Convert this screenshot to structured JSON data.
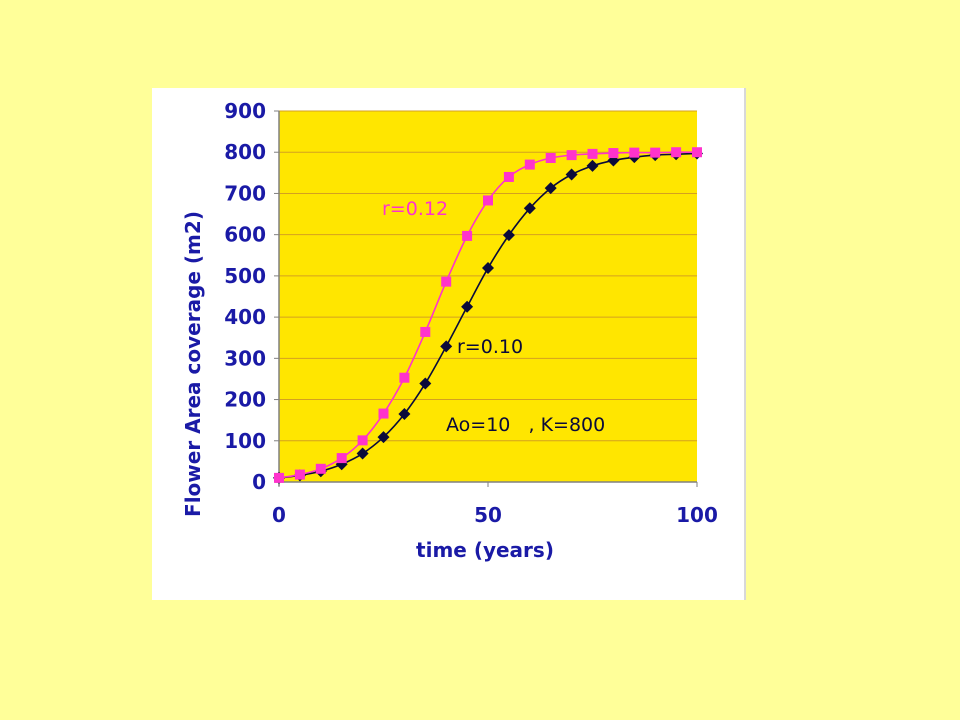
{
  "colors": {
    "slide_background": "#ffff99",
    "plot_background": "#ffe600",
    "gridline": "#d4a020",
    "axis_text": "#1a1aa6",
    "series_r012": "#ff33cc",
    "series_r010": "#0a0a3a"
  },
  "chart_data": {
    "type": "line",
    "xlabel": "time (years)",
    "ylabel": "Flower Area coverage (m2)",
    "xlim": [
      0,
      100
    ],
    "ylim": [
      0,
      900
    ],
    "x_ticks": [
      0,
      50,
      100
    ],
    "y_ticks": [
      0,
      100,
      200,
      300,
      400,
      500,
      600,
      700,
      800,
      900
    ],
    "grid": "horizontal",
    "series": [
      {
        "name": "r=0.12",
        "marker": "square",
        "color": "#ff33cc",
        "x": [
          0,
          5,
          10,
          15,
          20,
          25,
          30,
          35,
          40,
          45,
          50,
          55,
          60,
          65,
          70,
          75,
          80,
          85,
          90,
          95,
          100
        ],
        "y": [
          10,
          18,
          32,
          58,
          101,
          166,
          253,
          364,
          486,
          597,
          683,
          740,
          770,
          786,
          793,
          796,
          798,
          799,
          799,
          800,
          800
        ]
      },
      {
        "name": "r=0.10",
        "marker": "diamond",
        "color": "#0a0a3a",
        "x": [
          0,
          5,
          10,
          15,
          20,
          25,
          30,
          35,
          40,
          45,
          50,
          55,
          60,
          65,
          70,
          75,
          80,
          85,
          90,
          95,
          100
        ],
        "y": [
          10,
          16,
          26,
          43,
          69,
          109,
          165,
          239,
          329,
          425,
          519,
          599,
          664,
          713,
          746,
          767,
          780,
          788,
          793,
          795,
          797
        ]
      }
    ],
    "annotations": [
      {
        "text": "r=0.12",
        "color": "#ff33cc"
      },
      {
        "text": "r=0.10",
        "color": "#0a0a3a"
      },
      {
        "text": "Ao=10   , K=800",
        "color": "#0a0a3a"
      }
    ]
  }
}
